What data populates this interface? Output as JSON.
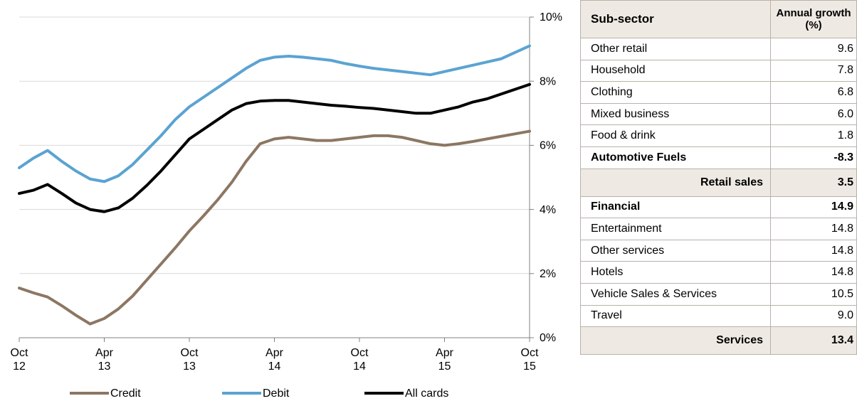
{
  "chart_data": {
    "type": "line",
    "categories": [
      "Oct 12",
      null,
      null,
      null,
      null,
      null,
      "Apr 13",
      null,
      null,
      null,
      null,
      null,
      "Oct 13",
      null,
      null,
      null,
      null,
      null,
      "Apr 14",
      null,
      null,
      null,
      null,
      null,
      "Oct 14",
      null,
      null,
      null,
      null,
      null,
      "Apr 15",
      null,
      null,
      null,
      null,
      null,
      "Oct 15"
    ],
    "series": [
      {
        "name": "Credit",
        "color": "#8c7763",
        "values": [
          1.55,
          1.4,
          1.27,
          1.0,
          0.7,
          0.43,
          0.6,
          0.9,
          1.3,
          1.8,
          2.3,
          2.8,
          3.33,
          3.8,
          4.3,
          4.85,
          5.5,
          6.05,
          6.2,
          6.25,
          6.2,
          6.15,
          6.15,
          6.2,
          6.25,
          6.3,
          6.3,
          6.25,
          6.15,
          6.05,
          6.0,
          6.05,
          6.12,
          6.2,
          6.28,
          6.36,
          6.44
        ]
      },
      {
        "name": "Debit",
        "color": "#5ba3d2",
        "values": [
          5.3,
          5.6,
          5.84,
          5.5,
          5.2,
          4.95,
          4.87,
          5.05,
          5.4,
          5.85,
          6.3,
          6.8,
          7.2,
          7.5,
          7.8,
          8.1,
          8.4,
          8.65,
          8.75,
          8.78,
          8.75,
          8.7,
          8.65,
          8.55,
          8.47,
          8.4,
          8.35,
          8.3,
          8.25,
          8.2,
          8.3,
          8.4,
          8.5,
          8.6,
          8.7,
          8.9,
          9.1
        ]
      },
      {
        "name": "All cards",
        "color": "#000000",
        "values": [
          4.5,
          4.6,
          4.78,
          4.5,
          4.2,
          4.0,
          3.93,
          4.05,
          4.35,
          4.75,
          5.2,
          5.7,
          6.2,
          6.5,
          6.8,
          7.1,
          7.3,
          7.38,
          7.4,
          7.4,
          7.35,
          7.3,
          7.25,
          7.22,
          7.18,
          7.15,
          7.1,
          7.05,
          7.0,
          7.0,
          7.1,
          7.2,
          7.35,
          7.45,
          7.6,
          7.75,
          7.9
        ]
      }
    ],
    "ylim": [
      0,
      10
    ],
    "yticks": [
      {
        "value": 0,
        "label": "0%"
      },
      {
        "value": 2,
        "label": "2%"
      },
      {
        "value": 4,
        "label": "4%"
      },
      {
        "value": 6,
        "label": "6%"
      },
      {
        "value": 8,
        "label": "8%"
      },
      {
        "value": 10,
        "label": "10%"
      }
    ],
    "grid": true,
    "legend": "bottom"
  },
  "table": {
    "header": [
      "Sub-sector",
      "Annual growth (%)"
    ],
    "rows": [
      {
        "cells": [
          "Other retail",
          "9.6"
        ],
        "style": "plain"
      },
      {
        "cells": [
          "Household",
          "7.8"
        ],
        "style": "plain"
      },
      {
        "cells": [
          "Clothing",
          "6.8"
        ],
        "style": "plain"
      },
      {
        "cells": [
          "Mixed business",
          "6.0"
        ],
        "style": "plain"
      },
      {
        "cells": [
          "Food & drink",
          "1.8"
        ],
        "style": "plain"
      },
      {
        "cells": [
          "Automotive Fuels",
          "-8.3"
        ],
        "style": "bold"
      },
      {
        "cells": [
          "Retail sales",
          "3.5"
        ],
        "style": "total"
      },
      {
        "cells": [
          "Financial",
          "14.9"
        ],
        "style": "bold"
      },
      {
        "cells": [
          "Entertainment",
          "14.8"
        ],
        "style": "plain"
      },
      {
        "cells": [
          "Other services",
          "14.8"
        ],
        "style": "plain"
      },
      {
        "cells": [
          "Hotels",
          "14.8"
        ],
        "style": "plain"
      },
      {
        "cells": [
          "Vehicle Sales & Services",
          "10.5"
        ],
        "style": "plain"
      },
      {
        "cells": [
          "Travel",
          "9.0"
        ],
        "style": "plain"
      },
      {
        "cells": [
          "Services",
          "13.4"
        ],
        "style": "total"
      }
    ]
  }
}
